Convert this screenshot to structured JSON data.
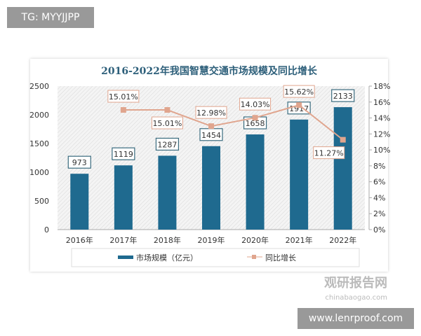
{
  "overlay": {
    "tag": "TG: MYYJJPP",
    "url": "www.lenrproof.com"
  },
  "watermark": {
    "cn": "观研报告网",
    "en": "chinabaogao.com"
  },
  "chart_data": {
    "type": "bar",
    "title": "2016-2022年我国智慧交通市场规模及同比增长",
    "categories": [
      "2016年",
      "2017年",
      "2018年",
      "2019年",
      "2020年",
      "2021年",
      "2022年"
    ],
    "series": [
      {
        "name": "市场规模（亿元）",
        "type": "bar",
        "axis": "left",
        "values": [
          973,
          1119,
          1287,
          1454,
          1658,
          1917,
          2133
        ],
        "color": "#1f6a8f"
      },
      {
        "name": "同比增长",
        "type": "line",
        "axis": "right",
        "values": [
          null,
          15.01,
          15.01,
          12.98,
          14.03,
          15.62,
          11.27
        ],
        "labels": [
          null,
          "15.01%",
          "15.01%",
          "12.98%",
          "14.03%",
          "15.62%",
          "11.27%"
        ],
        "color": "#e0a58e"
      }
    ],
    "ylim": [
      0,
      2500
    ],
    "yticks": [
      "0",
      "500",
      "1000",
      "1500",
      "2000",
      "2500"
    ],
    "y2lim": [
      0,
      18
    ],
    "y2ticks": [
      "0%",
      "2%",
      "4%",
      "6%",
      "8%",
      "10%",
      "12%",
      "14%",
      "16%",
      "18%"
    ],
    "legend": "bottom"
  }
}
